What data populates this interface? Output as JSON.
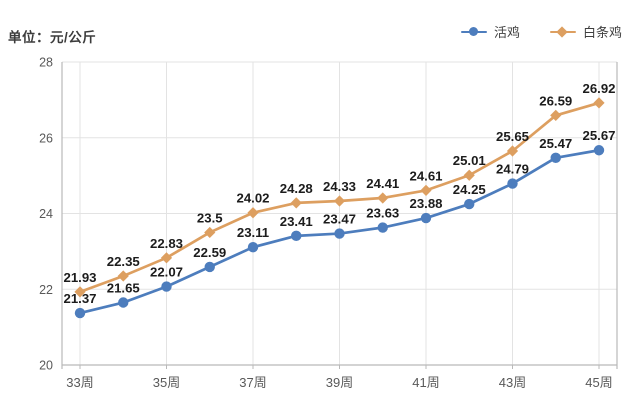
{
  "unit_label": "单位：元/公斤",
  "colors": {
    "background": "#ffffff",
    "grid": "#e3e3e3",
    "axis": "#b9b9b9",
    "tick_text": "#595959",
    "data_label": "#1c1c1c",
    "series_blue": "#4d7dbd",
    "series_orange": "#dd9f60"
  },
  "chart_data": {
    "type": "line",
    "title": "",
    "ylabel": "元/公斤",
    "ylim": [
      20,
      28
    ],
    "yticks": [
      "20",
      "22",
      "24",
      "26",
      "28"
    ],
    "grid": true,
    "legend_position": "top-right",
    "x_tick_labels": [
      {
        "index": 0,
        "label": "33周"
      },
      {
        "index": 2,
        "label": "35周"
      },
      {
        "index": 4,
        "label": "37周"
      },
      {
        "index": 6,
        "label": "39周"
      },
      {
        "index": 8,
        "label": "41周"
      },
      {
        "index": 10,
        "label": "43周"
      },
      {
        "index": 12,
        "label": "45周"
      }
    ],
    "series": [
      {
        "name": "活鸡",
        "marker": "circle",
        "color": "#4d7dbd",
        "values": [
          21.37,
          21.65,
          22.07,
          22.59,
          23.11,
          23.41,
          23.47,
          23.63,
          23.88,
          24.25,
          24.79,
          25.47,
          25.67
        ],
        "labels": [
          "21.37",
          "21.65",
          "22.07",
          "22.59",
          "23.11",
          "23.41",
          "23.47",
          "23.63",
          "23.88",
          "24.25",
          "24.79",
          "25.47",
          "25.67"
        ]
      },
      {
        "name": "白条鸡",
        "marker": "diamond",
        "color": "#dd9f60",
        "values": [
          21.93,
          22.35,
          22.83,
          23.5,
          24.02,
          24.28,
          24.33,
          24.41,
          24.61,
          25.01,
          25.65,
          26.59,
          26.92
        ],
        "labels": [
          "21.93",
          "22.35",
          "22.83",
          "23.5",
          "24.02",
          "24.28",
          "24.33",
          "24.41",
          "24.61",
          "25.01",
          "25.65",
          "26.59",
          "26.92"
        ]
      }
    ]
  }
}
